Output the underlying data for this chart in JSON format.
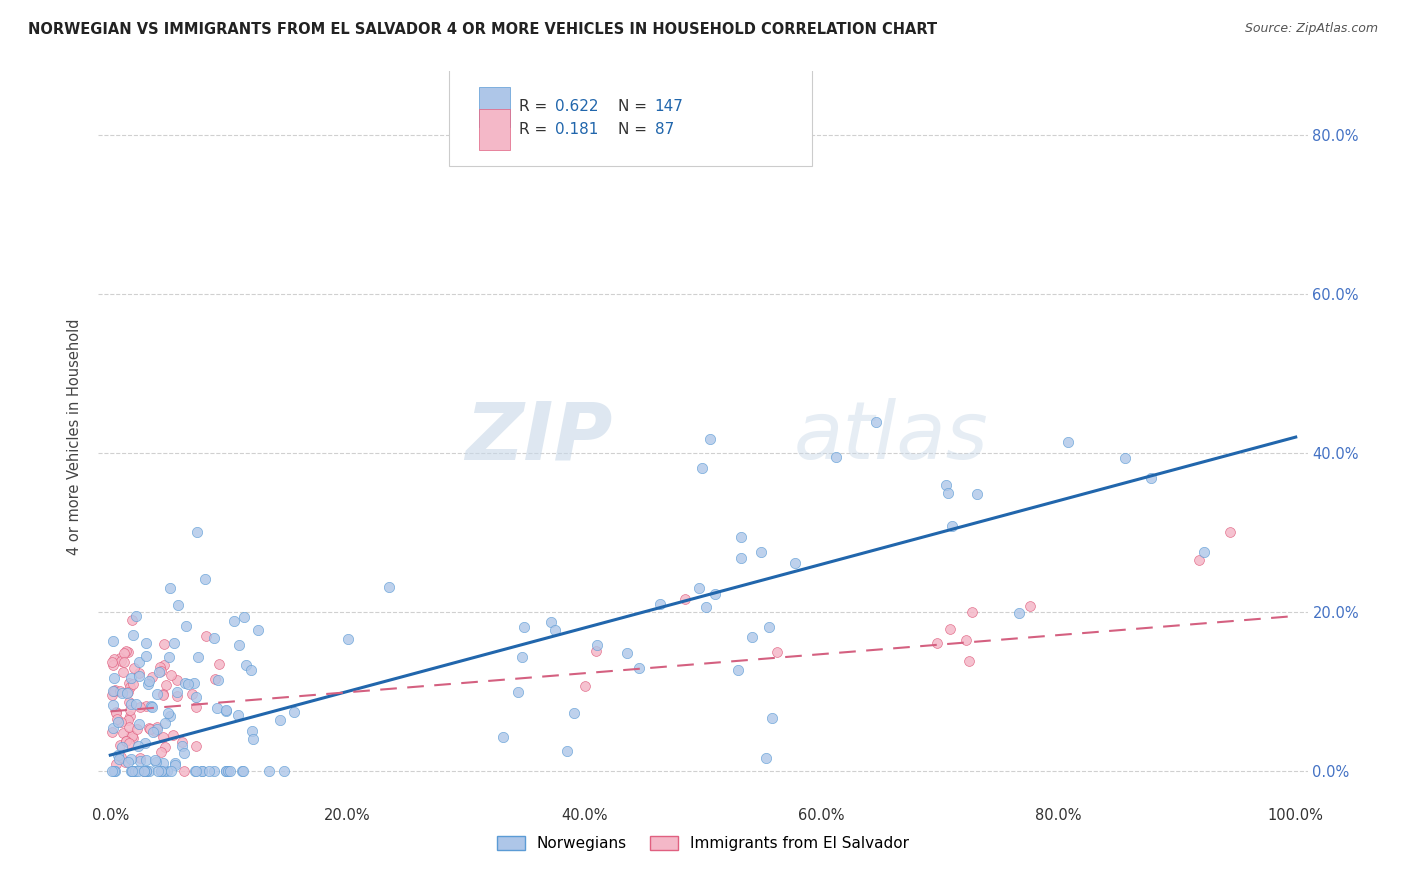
{
  "title": "NORWEGIAN VS IMMIGRANTS FROM EL SALVADOR 4 OR MORE VEHICLES IN HOUSEHOLD CORRELATION CHART",
  "source": "Source: ZipAtlas.com",
  "ylabel": "4 or more Vehicles in Household",
  "norwegian_color": "#aec6e8",
  "norwegian_edge": "#5b9bd5",
  "salvadoran_color": "#f4b8c8",
  "salvadoran_edge": "#e06080",
  "trend_norwegian_color": "#2166ac",
  "trend_salvadoran_color": "#d46080",
  "legend_R_norwegian": "0.622",
  "legend_N_norwegian": "147",
  "legend_R_salvadoran": "0.181",
  "legend_N_salvadoran": "87",
  "watermark_zip": "ZIP",
  "watermark_atlas": "atlas",
  "ytick_color": "#4472c4",
  "xtick_color": "#333333",
  "grid_color": "#d0d0d0"
}
